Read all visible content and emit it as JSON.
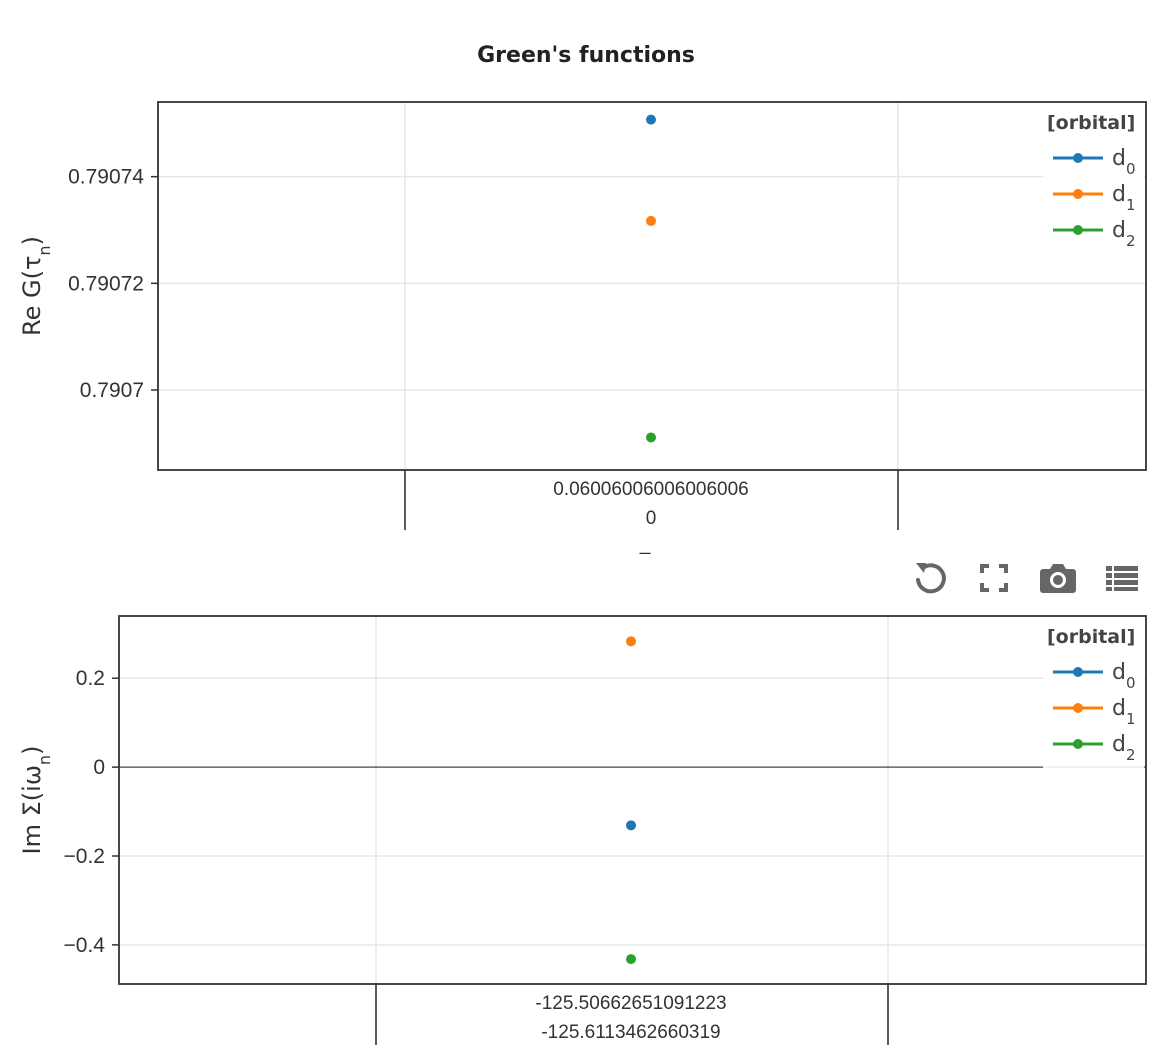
{
  "figure_title": "Green's functions",
  "toolbar": {
    "buttons": [
      {
        "name": "reset-icon"
      },
      {
        "name": "fullscreen-icon"
      },
      {
        "name": "camera-icon"
      },
      {
        "name": "table-icon"
      }
    ]
  },
  "colors": {
    "d0": "#1f77b4",
    "d1": "#ff7f0e",
    "d2": "#2ca02c"
  },
  "chart_data": [
    {
      "type": "scatter",
      "ylabel_main": "Re G(τ",
      "ylabel_sub": "n",
      "ylabel_tail": ")",
      "x_ticks": [
        "0.06006006006006006",
        "0"
      ],
      "x_extra": "_",
      "y_ticks": [
        {
          "value": 0.79074,
          "label": "0.79074"
        },
        {
          "value": 0.79072,
          "label": "0.79072"
        },
        {
          "value": 0.7907,
          "label": "0.7907"
        }
      ],
      "ylim": [
        0.790685,
        0.790754
      ],
      "legend_title": "[orbital]",
      "legend_placement": "top-right",
      "zero_line": false,
      "series": [
        {
          "name_base": "d",
          "name_sub": "0",
          "value": 0.7907507,
          "color": "#1f77b4"
        },
        {
          "name_base": "d",
          "name_sub": "1",
          "value": 0.7907317,
          "color": "#ff7f0e"
        },
        {
          "name_base": "d",
          "name_sub": "2",
          "value": 0.7906911,
          "color": "#2ca02c"
        }
      ]
    },
    {
      "type": "scatter",
      "ylabel_main": "Im Σ(iω",
      "ylabel_sub": "n",
      "ylabel_tail": ")",
      "x_ticks": [
        "-125.50662651091223",
        "-125.6113462660319"
      ],
      "x_extra": "",
      "y_ticks": [
        {
          "value": 0.2,
          "label": "0.2"
        },
        {
          "value": 0,
          "label": "0"
        },
        {
          "value": -0.2,
          "label": "−0.2"
        },
        {
          "value": -0.4,
          "label": "−0.4"
        }
      ],
      "ylim": [
        -0.488,
        0.34
      ],
      "legend_title": "[orbital]",
      "legend_placement": "top-right",
      "zero_line": true,
      "series": [
        {
          "name_base": "d",
          "name_sub": "0",
          "value": -0.131,
          "color": "#1f77b4"
        },
        {
          "name_base": "d",
          "name_sub": "1",
          "value": 0.283,
          "color": "#ff7f0e"
        },
        {
          "name_base": "d",
          "name_sub": "2",
          "value": -0.432,
          "color": "#2ca02c"
        }
      ]
    }
  ]
}
